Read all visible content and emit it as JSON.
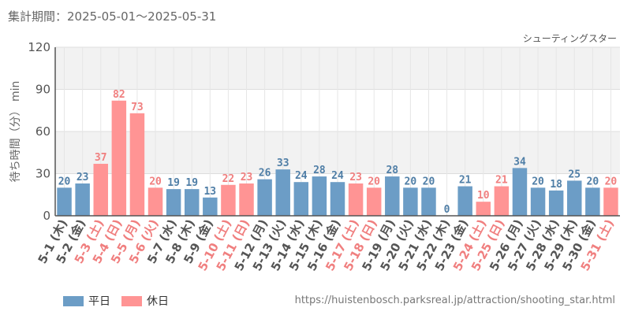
{
  "header": {
    "period": "集計期間：2025-05-01～2025-05-31"
  },
  "footer": {
    "url": "https://huistenbosch.parksreal.jp/attraction/shooting_star.html"
  },
  "colors": {
    "weekday": "#6c9dc6",
    "holiday": "#ff9494",
    "holiday_text": "#f07f7f",
    "weekday_text": "#4f7ea6"
  },
  "chart_data": {
    "type": "bar",
    "title": "シューティングスター",
    "ylabel": "待ち時間（分） min",
    "ylim": [
      0,
      120
    ],
    "yticks": [
      0,
      30,
      60,
      90,
      120
    ],
    "categories": [
      "5-1 (木)",
      "5-2 (金)",
      "5-3 (土)",
      "5-4 (日)",
      "5-5 (月)",
      "5-6 (火)",
      "5-7 (水)",
      "5-8 (木)",
      "5-9 (金)",
      "5-10 (土)",
      "5-11 (日)",
      "5-12 (月)",
      "5-13 (火)",
      "5-14 (水)",
      "5-15 (木)",
      "5-16 (金)",
      "5-17 (土)",
      "5-18 (日)",
      "5-19 (月)",
      "5-20 (火)",
      "5-21 (水)",
      "5-22 (木)",
      "5-23 (金)",
      "5-24 (土)",
      "5-25 (日)",
      "5-26 (月)",
      "5-27 (火)",
      "5-28 (水)",
      "5-29 (木)",
      "5-30 (金)",
      "5-31 (土)"
    ],
    "values": [
      20,
      23,
      37,
      82,
      73,
      20,
      19,
      19,
      13,
      22,
      23,
      26,
      33,
      24,
      28,
      24,
      23,
      20,
      28,
      20,
      20,
      0,
      21,
      10,
      21,
      34,
      20,
      18,
      25,
      20,
      20
    ],
    "day_types": [
      "平日",
      "平日",
      "休日",
      "休日",
      "休日",
      "休日",
      "平日",
      "平日",
      "平日",
      "休日",
      "休日",
      "平日",
      "平日",
      "平日",
      "平日",
      "平日",
      "休日",
      "休日",
      "平日",
      "平日",
      "平日",
      "平日",
      "平日",
      "休日",
      "休日",
      "平日",
      "平日",
      "平日",
      "平日",
      "平日",
      "休日"
    ],
    "legend": [
      {
        "name": "平日",
        "color": "#6c9dc6"
      },
      {
        "name": "休日",
        "color": "#ff9494"
      }
    ],
    "legend_position": "bottom-left",
    "grid": true
  }
}
